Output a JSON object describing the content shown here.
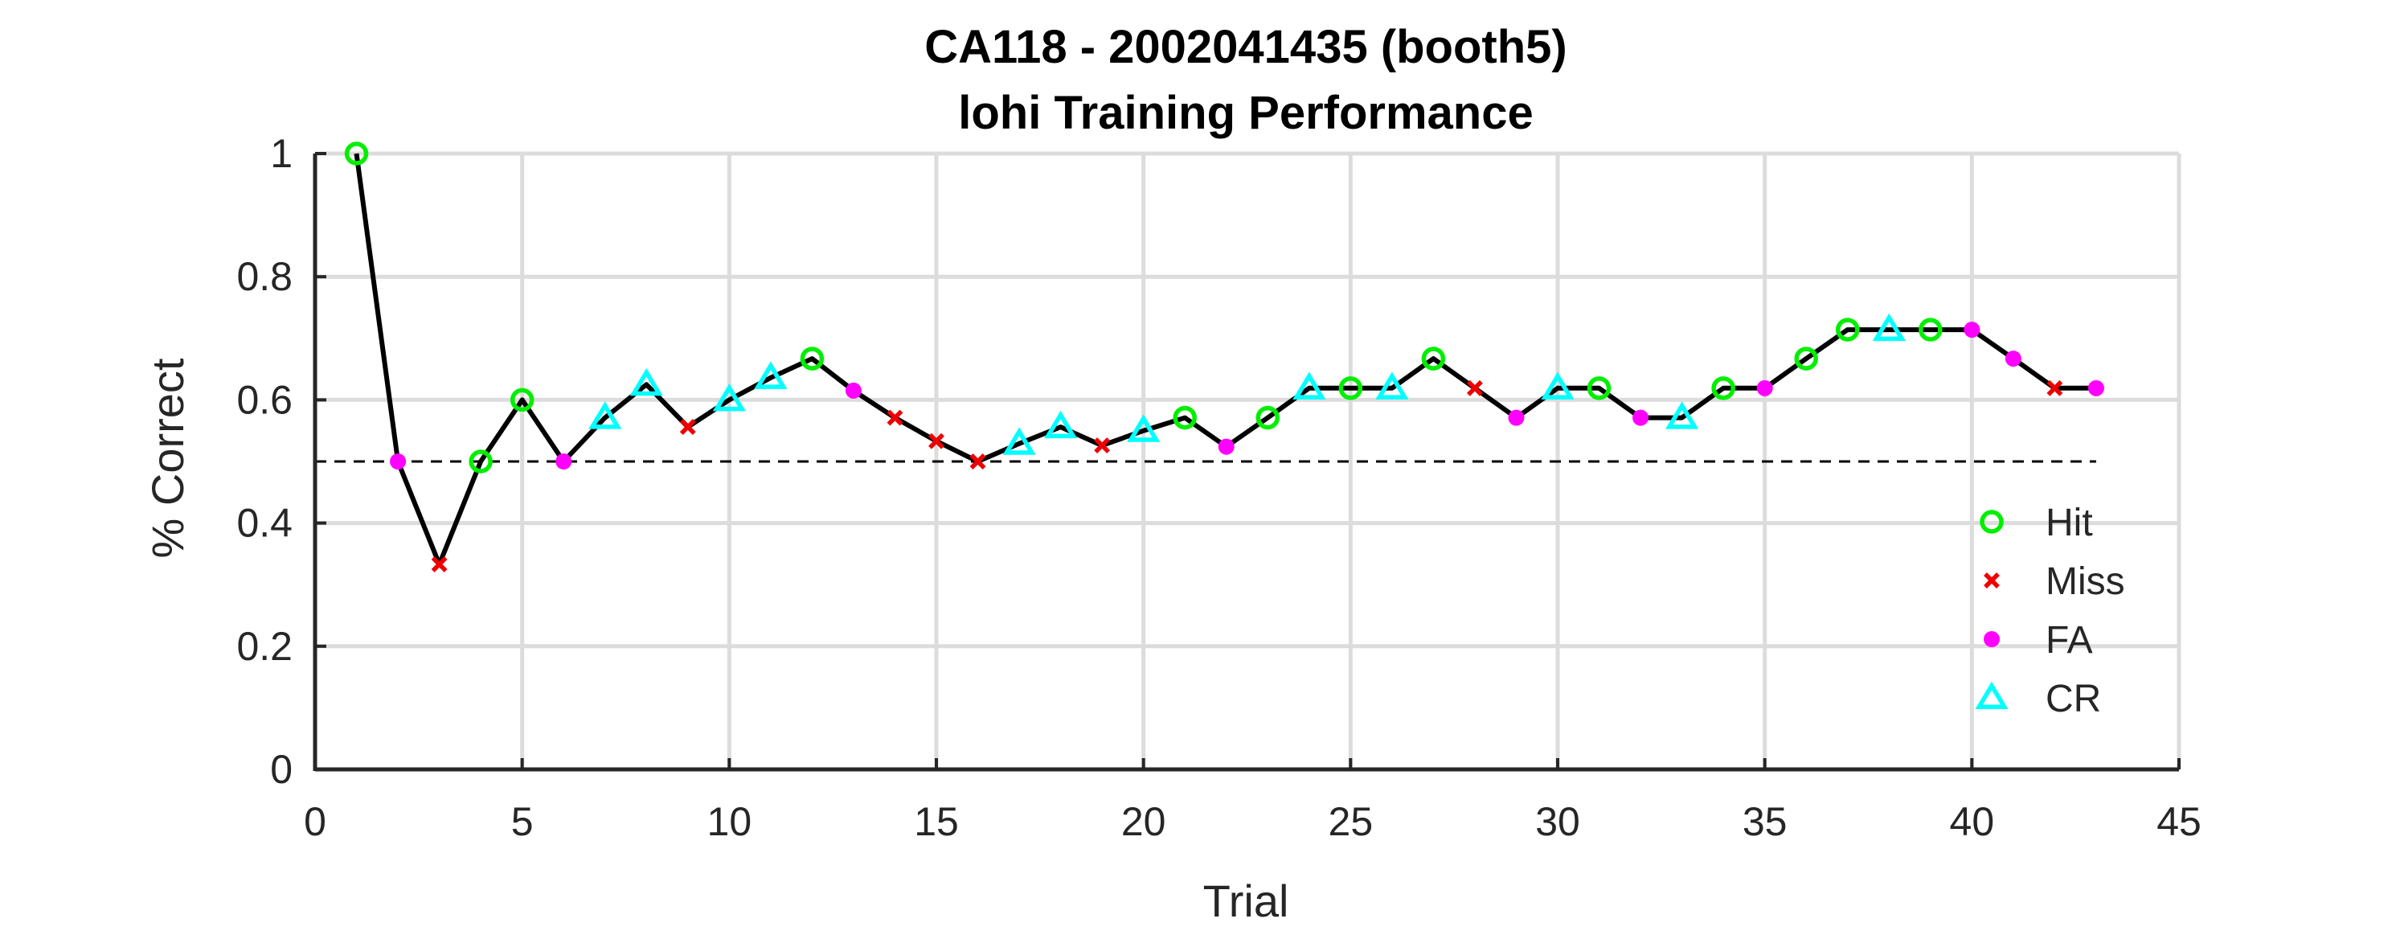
{
  "chart_data": {
    "type": "line",
    "title": [
      "CA118 - 2002041435 (booth5)",
      "lohi Training Performance"
    ],
    "xlabel": "Trial",
    "ylabel": "% Correct",
    "xlim": [
      0,
      45
    ],
    "ylim": [
      0,
      1
    ],
    "xticks": [
      0,
      5,
      10,
      15,
      20,
      25,
      30,
      35,
      40,
      45
    ],
    "yticks": [
      0,
      0.2,
      0.4,
      0.6,
      0.8,
      1
    ],
    "xtick_labels": [
      "0",
      "5",
      "10",
      "15",
      "20",
      "25",
      "30",
      "35",
      "40",
      "45"
    ],
    "ytick_labels": [
      "0",
      "0.2",
      "0.4",
      "0.6",
      "0.8",
      "1"
    ],
    "grid": true,
    "reference_line": {
      "y": 0.5,
      "style": "dashed",
      "x_range": [
        0,
        43
      ]
    },
    "line_color": "#000000",
    "x": [
      1,
      2,
      3,
      4,
      5,
      6,
      7,
      8,
      9,
      10,
      11,
      12,
      13,
      14,
      15,
      16,
      17,
      18,
      19,
      20,
      21,
      22,
      23,
      24,
      25,
      26,
      27,
      28,
      29,
      30,
      31,
      32,
      33,
      34,
      35,
      36,
      37,
      38,
      39,
      40,
      41,
      42,
      43
    ],
    "y": [
      1.0,
      0.5,
      0.333,
      0.5,
      0.6,
      0.5,
      0.571,
      0.625,
      0.556,
      0.6,
      0.636,
      0.667,
      0.615,
      0.571,
      0.533,
      0.5,
      0.529,
      0.556,
      0.526,
      0.55,
      0.571,
      0.524,
      0.571,
      0.619,
      0.619,
      0.619,
      0.667,
      0.619,
      0.571,
      0.619,
      0.619,
      0.571,
      0.571,
      0.619,
      0.619,
      0.667,
      0.714,
      0.714,
      0.714,
      0.714,
      0.667,
      0.619,
      0.619
    ],
    "outcomes": [
      "Hit",
      "FA",
      "Miss",
      "Hit",
      "Hit",
      "FA",
      "CR",
      "CR",
      "Miss",
      "CR",
      "CR",
      "Hit",
      "FA",
      "Miss",
      "Miss",
      "Miss",
      "CR",
      "CR",
      "Miss",
      "CR",
      "Hit",
      "FA",
      "Hit",
      "CR",
      "Hit",
      "CR",
      "Hit",
      "Miss",
      "FA",
      "CR",
      "Hit",
      "FA",
      "CR",
      "Hit",
      "FA",
      "Hit",
      "Hit",
      "CR",
      "Hit",
      "FA",
      "FA",
      "Miss",
      "FA"
    ],
    "legend": {
      "position": "bottom-right",
      "entries": [
        {
          "name": "Hit",
          "marker": "circle-open",
          "color": "#00ee00"
        },
        {
          "name": "Miss",
          "marker": "x",
          "color": "#ee0000"
        },
        {
          "name": "FA",
          "marker": "dot",
          "color": "#ff00ff"
        },
        {
          "name": "CR",
          "marker": "triangle-open",
          "color": "#00ffff"
        }
      ]
    }
  }
}
